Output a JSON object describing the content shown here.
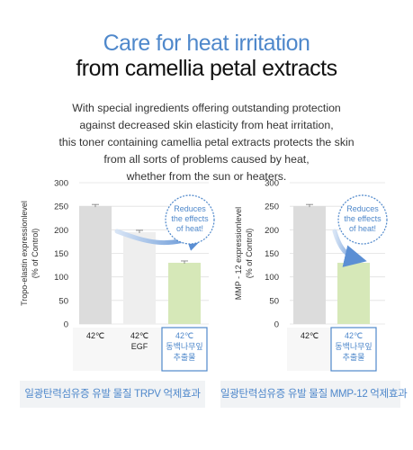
{
  "header": {
    "title_line1": "Care for heat irritation",
    "title_line2": "from camellia petal extracts"
  },
  "description": [
    "With special ingredients offering outstanding protection",
    "against decreased skin elasticity from heat irritation,",
    "this toner containing camellia petal extracts protects the skin",
    "from all sorts of problems caused by heat,",
    "whether from the sun or heaters."
  ],
  "footer": {
    "left": "일광탄력섬유증 유발 물질 TRPV 억제효과",
    "right": "일광탄력섬유증 유발 물질 MMP-12 억제효과"
  },
  "colors": {
    "accent": "#4f88cb",
    "bar_control": "#dcdcdc",
    "bar_egf": "#eeeeee",
    "bar_extract": "#d6e8b8",
    "arrow": "#5b8fd4",
    "bubble_border": "#4f88cb",
    "grid": "#e0e0e0",
    "footer_bg": "#f1f3f5"
  },
  "chart_data": [
    {
      "type": "bar",
      "ylabel_line1": "Tropo-elastin expressionlevel",
      "ylabel_line2": "(% of Control)",
      "ylim": [
        0,
        300
      ],
      "yticks": [
        0,
        50,
        100,
        150,
        200,
        250,
        300
      ],
      "grid": true,
      "categories": [
        {
          "label": [
            "42℃"
          ],
          "highlight": false
        },
        {
          "label": [
            "42℃",
            "EGF"
          ],
          "highlight": false
        },
        {
          "label": [
            "42℃",
            "동백나무잎",
            "추출물"
          ],
          "highlight": true
        }
      ],
      "values": [
        250,
        195,
        130
      ],
      "bar_colors": [
        "#dcdcdc",
        "#eeeeee",
        "#d6e8b8"
      ],
      "callout": [
        "Reduces",
        "the effects",
        "of heat!"
      ]
    },
    {
      "type": "bar",
      "ylabel_line1": "MMP - 12 expressionlevel",
      "ylabel_line2": "(% of Control)",
      "ylim": [
        0,
        300
      ],
      "yticks": [
        0,
        50,
        100,
        150,
        200,
        250,
        300
      ],
      "grid": true,
      "categories": [
        {
          "label": [
            "42℃"
          ],
          "highlight": false
        },
        {
          "label": [
            "42℃",
            "동백나무잎",
            "추출물"
          ],
          "highlight": true
        }
      ],
      "values": [
        250,
        130
      ],
      "bar_colors": [
        "#dcdcdc",
        "#d6e8b8"
      ],
      "callout": [
        "Reduces",
        "the effects",
        "of heat!"
      ]
    }
  ]
}
